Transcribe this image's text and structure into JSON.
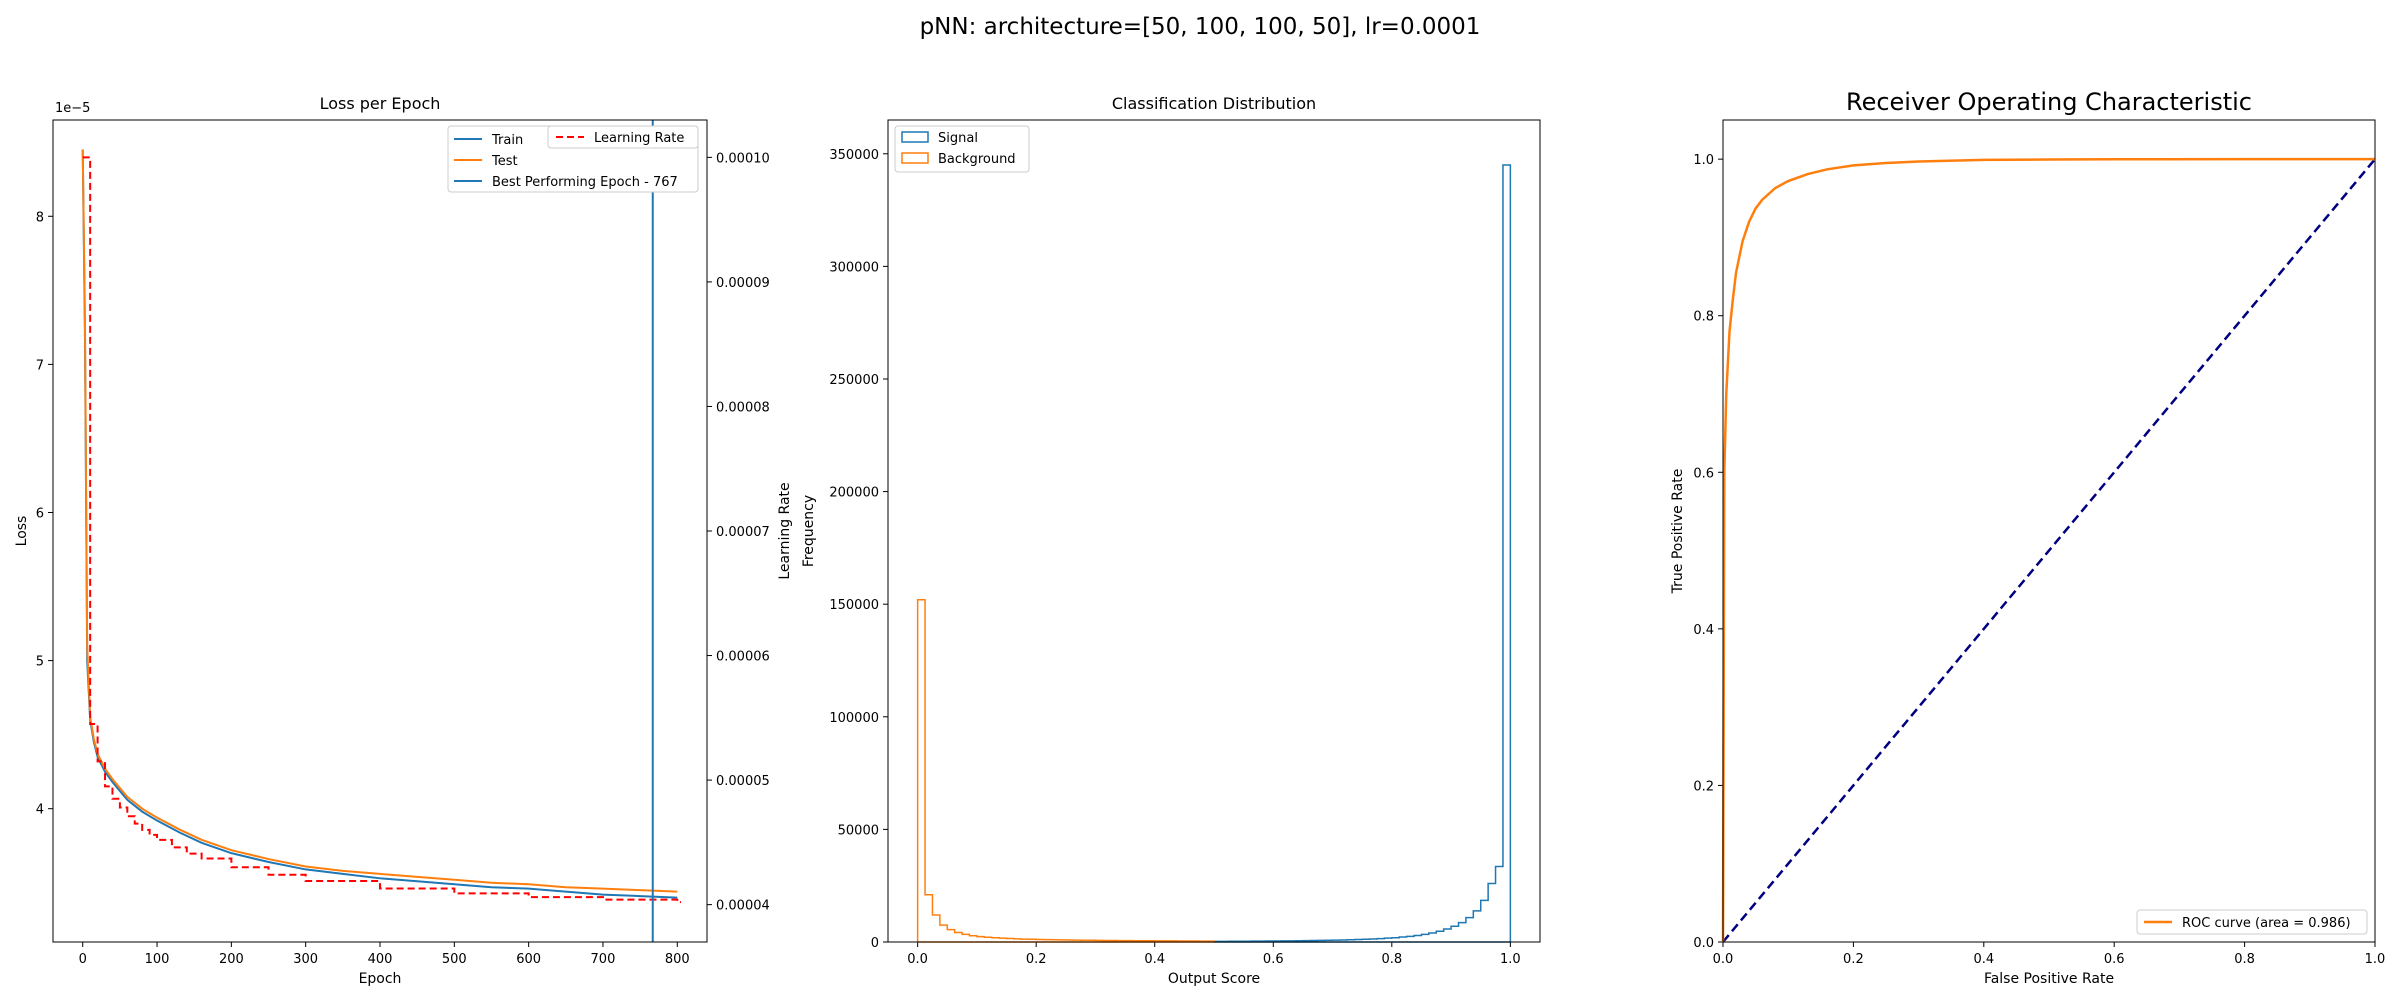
{
  "suptitle": "pNN: architecture=[50, 100, 100, 50], lr=0.0001",
  "colors": {
    "train": "#1f77b4",
    "test": "#ff7f0e",
    "lr": "#ff0000",
    "best": "#1f77b4",
    "signal": "#1f77b4",
    "background": "#ff7f0e",
    "roc": "#ff7f0e",
    "diag": "#000080"
  },
  "chart_data": [
    {
      "type": "line",
      "title": "Loss per Epoch",
      "xlabel": "Epoch",
      "ylabel": "Loss",
      "y2label": "Learning Rate",
      "offset_label": "1e−5",
      "xlim": [
        -40,
        840
      ],
      "ylim": [
        3.1e-05,
        8.65e-05
      ],
      "y2lim": [
        3.7e-05,
        0.000103
      ],
      "xticks": [
        "0",
        "100",
        "200",
        "300",
        "400",
        "500",
        "600",
        "700",
        "800"
      ],
      "yticks": [
        "4",
        "5",
        "6",
        "7",
        "8"
      ],
      "y2ticks": [
        "0.00004",
        "0.00005",
        "0.00006",
        "0.00007",
        "0.00008",
        "0.00009",
        "0.00010"
      ],
      "legend_position": "upper right",
      "legend_left": [
        "Train",
        "Test",
        "Best Performing Epoch - 767"
      ],
      "legend_right": [
        "Learning Rate"
      ],
      "best_epoch": 767,
      "series": [
        {
          "name": "Train",
          "x": [
            0,
            3,
            6,
            10,
            15,
            20,
            30,
            40,
            50,
            60,
            80,
            100,
            130,
            160,
            200,
            250,
            300,
            350,
            400,
            450,
            500,
            550,
            600,
            650,
            700,
            750,
            800
          ],
          "y": [
            8.45e-05,
            7.2e-05,
            5e-05,
            4.6e-05,
            4.45e-05,
            4.35e-05,
            4.25e-05,
            4.18e-05,
            4.12e-05,
            4.06e-05,
            3.98e-05,
            3.92e-05,
            3.84e-05,
            3.77e-05,
            3.7e-05,
            3.64e-05,
            3.59e-05,
            3.56e-05,
            3.53e-05,
            3.51e-05,
            3.49e-05,
            3.47e-05,
            3.46e-05,
            3.44e-05,
            3.42e-05,
            3.41e-05,
            3.4e-05
          ]
        },
        {
          "name": "Test",
          "x": [
            0,
            3,
            6,
            10,
            15,
            20,
            30,
            40,
            50,
            60,
            80,
            100,
            130,
            160,
            200,
            250,
            300,
            350,
            400,
            450,
            500,
            550,
            600,
            650,
            700,
            750,
            800
          ],
          "y": [
            8.45e-05,
            7.3e-05,
            5.1e-05,
            4.62e-05,
            4.47e-05,
            4.37e-05,
            4.27e-05,
            4.2e-05,
            4.14e-05,
            4.08e-05,
            4e-05,
            3.94e-05,
            3.86e-05,
            3.79e-05,
            3.72e-05,
            3.66e-05,
            3.61e-05,
            3.58e-05,
            3.56e-05,
            3.54e-05,
            3.52e-05,
            3.5e-05,
            3.49e-05,
            3.47e-05,
            3.46e-05,
            3.45e-05,
            3.44e-05
          ]
        },
        {
          "name": "Learning Rate",
          "axis": "right",
          "step": true,
          "x": [
            0,
            10,
            20,
            30,
            40,
            50,
            60,
            70,
            80,
            90,
            100,
            120,
            140,
            160,
            200,
            250,
            300,
            400,
            500,
            600,
            700,
            800
          ],
          "y": [
            0.0001,
            5.45e-05,
            5.15e-05,
            4.95e-05,
            4.85e-05,
            4.78e-05,
            4.71e-05,
            4.65e-05,
            4.6e-05,
            4.56e-05,
            4.52e-05,
            4.46e-05,
            4.41e-05,
            4.37e-05,
            4.3e-05,
            4.24e-05,
            4.19e-05,
            4.13e-05,
            4.09e-05,
            4.06e-05,
            4.04e-05,
            4.02e-05
          ]
        }
      ]
    },
    {
      "type": "bar",
      "title": "Classification Distribution",
      "xlabel": "Output Score",
      "ylabel": "Frequency",
      "xlim": [
        -0.05,
        1.05
      ],
      "ylim": [
        0,
        365000
      ],
      "xticks": [
        "0.0",
        "0.2",
        "0.4",
        "0.6",
        "0.8",
        "1.0"
      ],
      "yticks": [
        "0",
        "50000",
        "100000",
        "150000",
        "200000",
        "250000",
        "300000",
        "350000"
      ],
      "legend_position": "upper left",
      "bin_width": 0.0125,
      "series": [
        {
          "name": "Signal",
          "style": "step",
          "x0": 0.5,
          "values": [
            300,
            300,
            320,
            340,
            360,
            380,
            400,
            420,
            450,
            480,
            520,
            560,
            600,
            650,
            700,
            760,
            820,
            900,
            1000,
            1100,
            1200,
            1350,
            1500,
            1700,
            1900,
            2200,
            2500,
            2900,
            3400,
            4000,
            4800,
            5800,
            7000,
            8600,
            10800,
            13800,
            18500,
            26000,
            33500,
            345000
          ]
        },
        {
          "name": "Background",
          "style": "step",
          "x0": 0.0,
          "values": [
            152000,
            21000,
            12000,
            7500,
            5500,
            4200,
            3400,
            2800,
            2400,
            2100,
            1900,
            1700,
            1550,
            1400,
            1300,
            1200,
            1100,
            1050,
            1000,
            950,
            900,
            850,
            800,
            760,
            720,
            690,
            660,
            630,
            600,
            580,
            560,
            540,
            520,
            500,
            480,
            460,
            440,
            420,
            400,
            380
          ]
        }
      ]
    },
    {
      "type": "line",
      "title": "Receiver Operating Characteristic",
      "xlabel": "False Positive Rate",
      "ylabel": "True Positive Rate",
      "xlim": [
        0,
        1
      ],
      "ylim": [
        0,
        1.05
      ],
      "xticks": [
        "0.0",
        "0.2",
        "0.4",
        "0.6",
        "0.8",
        "1.0"
      ],
      "yticks": [
        "0.0",
        "0.2",
        "0.4",
        "0.6",
        "0.8",
        "1.0"
      ],
      "legend_position": "lower right",
      "auc": 0.986,
      "series": [
        {
          "name": "ROC curve (area = 0.986)",
          "x": [
            0,
            0.002,
            0.005,
            0.01,
            0.015,
            0.02,
            0.03,
            0.04,
            0.05,
            0.06,
            0.08,
            0.1,
            0.13,
            0.16,
            0.2,
            0.25,
            0.3,
            0.4,
            0.5,
            0.6,
            0.8,
            1.0
          ],
          "y": [
            0,
            0.6,
            0.7,
            0.78,
            0.82,
            0.855,
            0.895,
            0.92,
            0.937,
            0.948,
            0.963,
            0.972,
            0.981,
            0.987,
            0.992,
            0.995,
            0.997,
            0.999,
            0.9995,
            0.9998,
            1.0,
            1.0
          ]
        },
        {
          "name": "",
          "style": "dashed",
          "x": [
            0,
            1
          ],
          "y": [
            0,
            1
          ]
        }
      ]
    }
  ]
}
